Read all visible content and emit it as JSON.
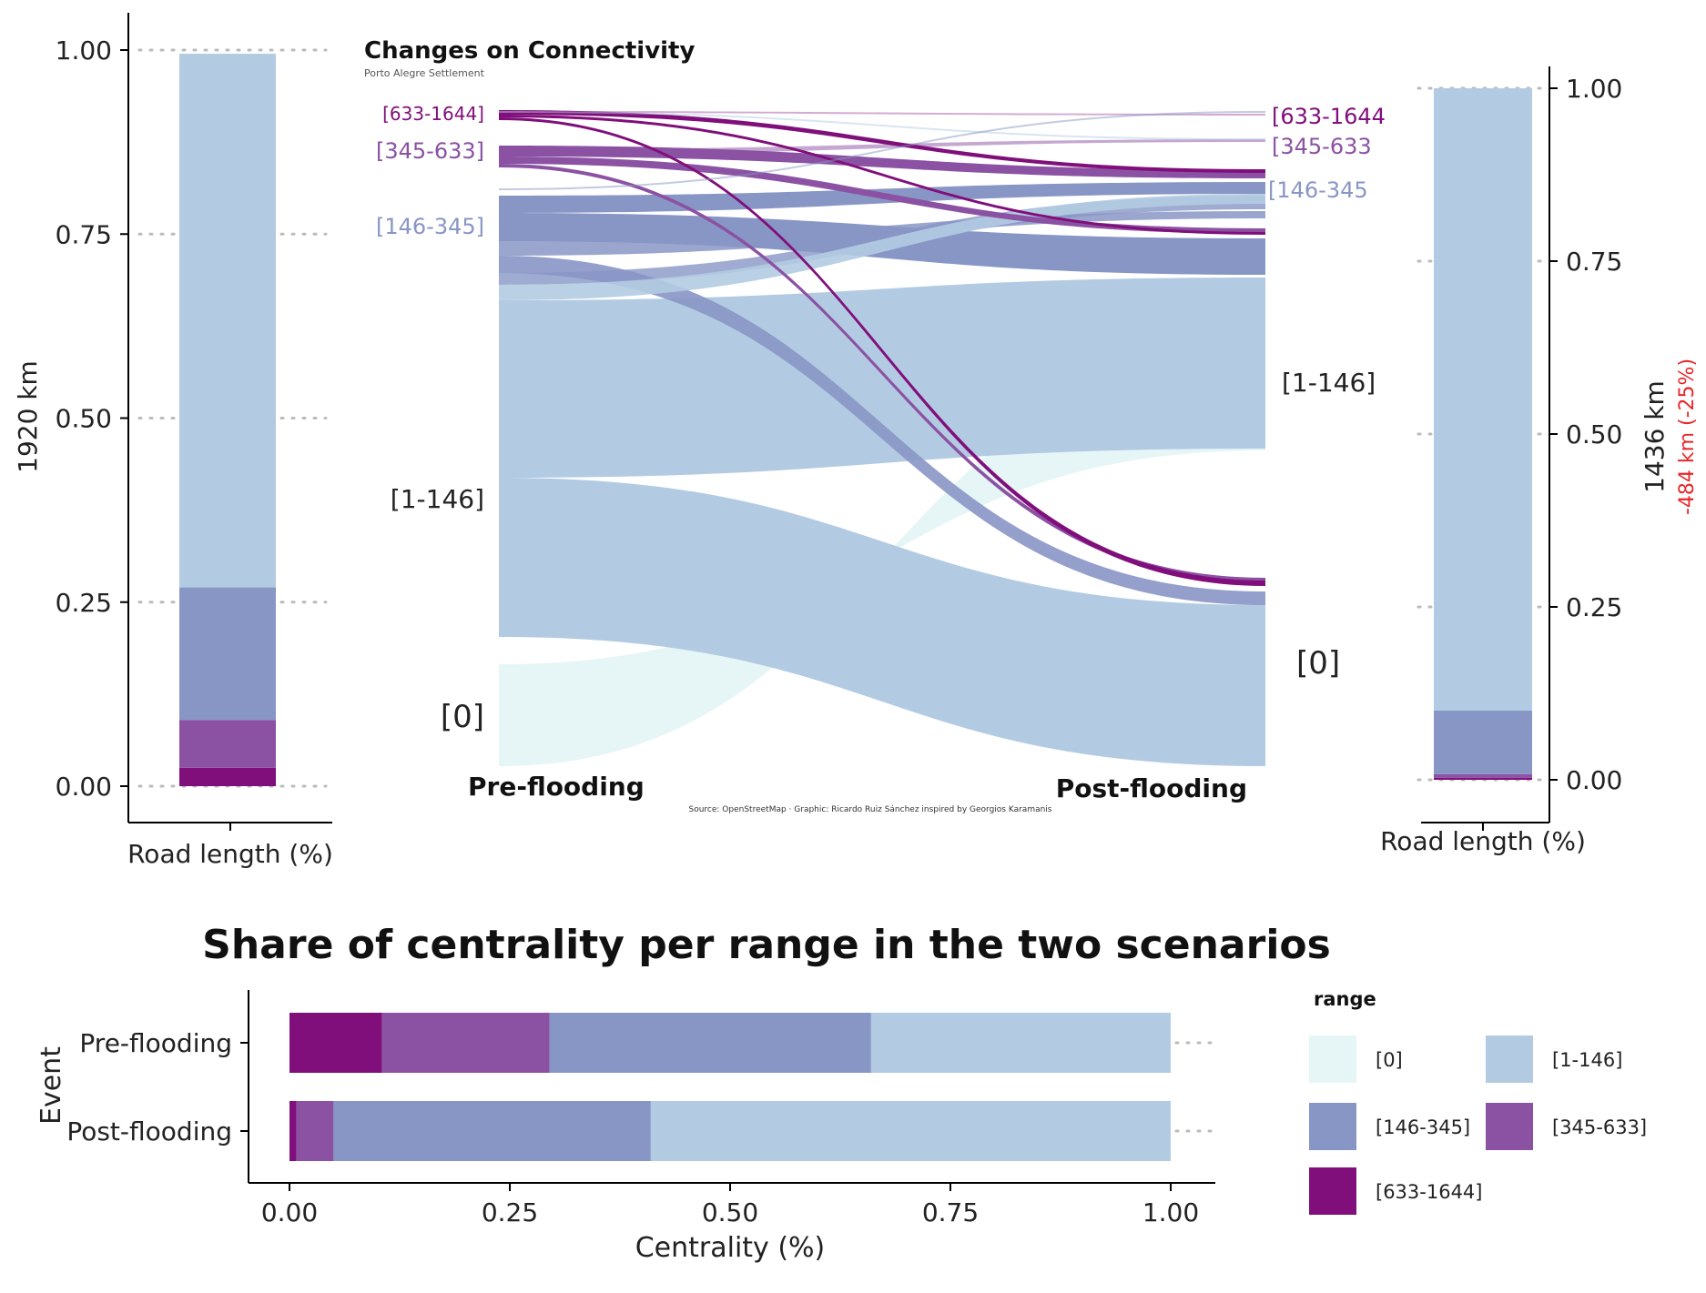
{
  "colors": {
    "r0": "#e6f5f6",
    "r1": "#b3cbe2",
    "r2": "#8896c5",
    "r3": "#8b52a3",
    "r4": "#800f7b",
    "axis": "#000000",
    "grid": "#bbbbbb",
    "delta": "#e8262a"
  },
  "chart_data": [
    {
      "type": "bar",
      "panel": "left-stacked",
      "ylabel": "1920 km",
      "xlabel": "Road length (%)",
      "ylim": [
        0,
        1
      ],
      "yticks": [
        "0.00",
        "0.25",
        "0.50",
        "0.75",
        "1.00"
      ],
      "grid": "dotted horizontal",
      "series": [
        {
          "range": "[633-1644]",
          "value": 0.025
        },
        {
          "range": "[345-633]",
          "value": 0.065
        },
        {
          "range": "[146-345]",
          "value": 0.18
        },
        {
          "range": "[1-146]",
          "value": 0.725
        }
      ]
    },
    {
      "type": "sankey",
      "title": "Changes on Connectivity",
      "subtitle": "Porto Alegre Settlement",
      "caption": "Source: OpenStreetMap · Graphic: Ricardo Ruiz Sánchez inspired by Georgios Karamanis",
      "left_axis": "Pre-flooding",
      "right_axis": "Post-flooding",
      "left_nodes": [
        "[633-1644]",
        "[345-633]",
        "[146-345]",
        "[1-146]",
        "[0]"
      ],
      "right_nodes": [
        "[633-1644",
        "[345-633",
        "[146-345",
        "[1-146]",
        "[0]"
      ],
      "left_node_label_sizes": [
        "small",
        "medium",
        "medium",
        "large",
        "xlarge"
      ],
      "right_node_label_sizes": [
        "medium",
        "medium",
        "medium",
        "large",
        "xlarge"
      ],
      "flows": [
        {
          "from": "[0]",
          "to": "[1-146]",
          "share": 0.14
        },
        {
          "from": "[1-146]",
          "to": "[1-146]",
          "share": 0.24
        },
        {
          "from": "[1-146]",
          "to": "[0]",
          "share": 0.22
        },
        {
          "from": "[146-345]",
          "to": "[146-345]",
          "share": 0.025
        },
        {
          "from": "[146-345]",
          "to": "[345-633]",
          "share": 0.007
        },
        {
          "from": "[146-345]",
          "to": "[1-146]",
          "share": 0.06
        },
        {
          "from": "[146-345]",
          "to": "[0]",
          "share": 0.02
        },
        {
          "from": "[345-633]",
          "to": "[345-633]",
          "share": 0.012
        },
        {
          "from": "[345-633]",
          "to": "[146-345]",
          "share": 0.012
        },
        {
          "from": "[345-633]",
          "to": "[1-146]",
          "share": 0.004
        },
        {
          "from": "[345-633]",
          "to": "[0]",
          "share": 0.005
        },
        {
          "from": "[633-1644]",
          "to": "[345-633]",
          "share": 0.006
        },
        {
          "from": "[633-1644]",
          "to": "[1-146]",
          "share": 0.003
        },
        {
          "from": "[633-1644]",
          "to": "[0]",
          "share": 0.004
        }
      ]
    },
    {
      "type": "bar",
      "panel": "right-stacked",
      "ylabel": "1436 km",
      "delta_label": "-484 km (-25%)",
      "xlabel": "Road length (%)",
      "ylim": [
        0,
        1
      ],
      "yticks": [
        "0.00",
        "0.25",
        "0.50",
        "0.75",
        "1.00"
      ],
      "series": [
        {
          "range": "[633-1644]",
          "value": 0.003
        },
        {
          "range": "[345-633]",
          "value": 0.005
        },
        {
          "range": "[146-345]",
          "value": 0.092
        },
        {
          "range": "[1-146]",
          "value": 0.9
        }
      ]
    },
    {
      "type": "bar",
      "orientation": "horizontal",
      "panel": "centrality-share",
      "title": "Share of centrality per range in the two scenarios",
      "xlabel": "Centrality (%)",
      "ylabel": "Event",
      "xlim": [
        0,
        1
      ],
      "xticks": [
        "0.00",
        "0.25",
        "0.50",
        "0.75",
        "1.00"
      ],
      "categories": [
        "Pre-flooding",
        "Post-flooding"
      ],
      "legend_title": "range",
      "legend_position": "right",
      "series": [
        {
          "name": "[633-1644]",
          "values": [
            0.105,
            0.008
          ]
        },
        {
          "name": "[345-633]",
          "values": [
            0.19,
            0.042
          ]
        },
        {
          "name": "[146-345]",
          "values": [
            0.365,
            0.36
          ]
        },
        {
          "name": "[1-146]",
          "values": [
            0.34,
            0.59
          ]
        }
      ],
      "legend": [
        {
          "name": "[0]",
          "color_key": "r0"
        },
        {
          "name": "[1-146]",
          "color_key": "r1"
        },
        {
          "name": "[146-345]",
          "color_key": "r2"
        },
        {
          "name": "[345-633]",
          "color_key": "r3"
        },
        {
          "name": "[633-1644]",
          "color_key": "r4"
        }
      ]
    }
  ]
}
